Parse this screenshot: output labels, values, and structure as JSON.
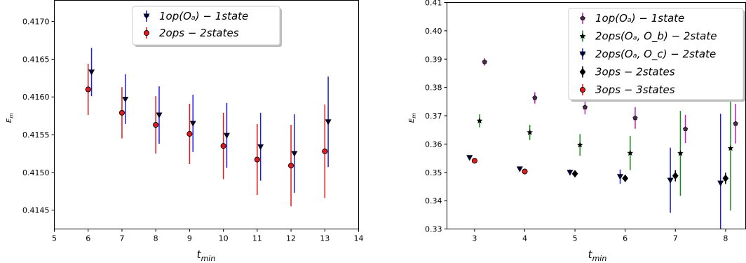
{
  "chart_data": [
    {
      "type": "scatter",
      "xlabel": "t_min",
      "ylabel": "E_m",
      "xlim": [
        5,
        14
      ],
      "ylim": [
        0.41425,
        0.41728
      ],
      "xticks": [
        "5",
        "6",
        "7",
        "8",
        "9",
        "10",
        "11",
        "12",
        "13",
        "14"
      ],
      "yticks": [
        "0.4145",
        "0.4150",
        "0.4155",
        "0.4160",
        "0.4165",
        "0.4170"
      ],
      "grid": false,
      "legend_position": "top-center",
      "series": [
        {
          "name": "1op(O_a) − 1state",
          "legend_label": "1op(Oₐ) − 1state",
          "color": "#1f1fd9",
          "marker": "triangle-down",
          "x": [
            6.1,
            7.1,
            8.1,
            9.1,
            10.1,
            11.1,
            12.1,
            13.1
          ],
          "y": [
            0.41633,
            0.41597,
            0.41576,
            0.41565,
            0.41549,
            0.41534,
            0.41525,
            0.41567
          ],
          "err": [
            0.00032,
            0.00033,
            0.00038,
            0.00038,
            0.00043,
            0.00045,
            0.00052,
            0.0006
          ]
        },
        {
          "name": "2ops − 2states",
          "legend_label": "2ops − 2states",
          "color": "#e01919",
          "marker": "circle",
          "x": [
            6,
            7,
            8,
            9,
            10,
            11,
            12,
            13
          ],
          "y": [
            0.4161,
            0.41579,
            0.41563,
            0.41551,
            0.41535,
            0.41517,
            0.41509,
            0.41528
          ],
          "err": [
            0.00034,
            0.00034,
            0.00038,
            0.0004,
            0.00044,
            0.00047,
            0.00054,
            0.00062
          ]
        }
      ]
    },
    {
      "type": "scatter",
      "xlabel": "t_min",
      "ylabel": "E_m",
      "xlim": [
        2.45,
        8.4
      ],
      "ylim": [
        0.33,
        0.41
      ],
      "xticks": [
        "3",
        "4",
        "5",
        "6",
        "7",
        "8"
      ],
      "yticks": [
        "0.33",
        "0.34",
        "0.35",
        "0.36",
        "0.37",
        "0.38",
        "0.39",
        "0.40",
        "0.41"
      ],
      "grid": false,
      "legend_position": "top-right",
      "series": [
        {
          "name": "1op(O_a) − 1state",
          "legend_label": "1op(Oₐ) − 1state",
          "color": "#c21fc2",
          "marker": "pentagon",
          "x": [
            3.2,
            4.2,
            5.2,
            6.2,
            7.2,
            8.2
          ],
          "y": [
            0.389,
            0.3763,
            0.373,
            0.3692,
            0.3653,
            0.3672
          ],
          "err": [
            0.0013,
            0.002,
            0.0025,
            0.0038,
            0.005,
            0.007
          ]
        },
        {
          "name": "2ops(O_a, O_b) − 2state",
          "legend_label": "2ops(Oₐ, O_b) − 2state",
          "color": "#1a8a1a",
          "marker": "star",
          "x": [
            3.1,
            4.1,
            5.1,
            6.1,
            7.1,
            8.1
          ],
          "y": [
            0.3682,
            0.3641,
            0.3597,
            0.3568,
            0.3567,
            0.3585
          ],
          "err": [
            0.0023,
            0.0027,
            0.0038,
            0.006,
            0.015,
            0.022
          ]
        },
        {
          "name": "2ops(O_a, O_c) − 2state",
          "legend_label": "2ops(Oₐ, O_c) − 2state",
          "color": "#1f1fd9",
          "marker": "triangle-down",
          "x": [
            2.9,
            3.9,
            4.9,
            5.9,
            6.9,
            7.9
          ],
          "y": [
            0.3552,
            0.3512,
            0.35,
            0.3485,
            0.3472,
            0.3462
          ],
          "err": [
            0.0005,
            0.0008,
            0.001,
            0.0025,
            0.0115,
            0.0245
          ]
        },
        {
          "name": "3ops − 2states",
          "legend_label": "3ops − 2states",
          "color": "#000000",
          "marker": "diamond",
          "x": [
            5.0,
            6.0,
            7.0,
            8.0
          ],
          "y": [
            0.3495,
            0.3479,
            0.3488,
            0.3479
          ],
          "err": [
            0.0008,
            0.0012,
            0.002,
            0.002
          ]
        },
        {
          "name": "3ops − 3states",
          "legend_label": "3ops − 3states",
          "color": "#e01919",
          "marker": "circle",
          "x": [
            3.0,
            4.0
          ],
          "y": [
            0.3541,
            0.3503
          ],
          "err": [
            0.0005,
            0.0006
          ]
        }
      ]
    }
  ]
}
